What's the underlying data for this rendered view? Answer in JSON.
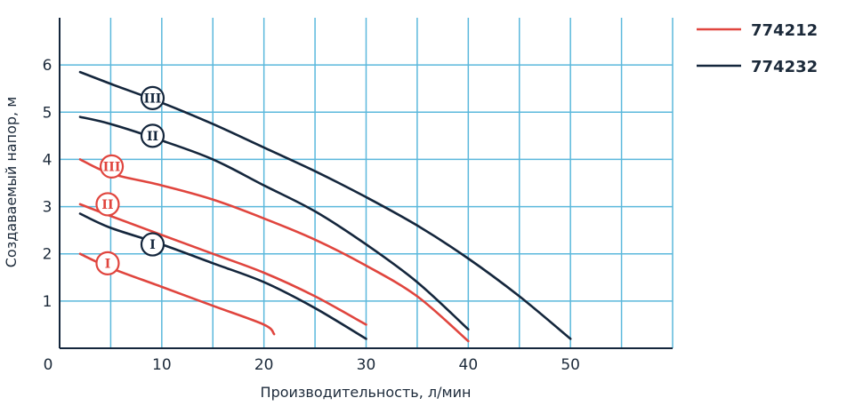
{
  "chart_data": {
    "type": "line",
    "xlabel": "Производительность, л/мин",
    "ylabel": "Создаваемый напор, м",
    "xlim": [
      0,
      60
    ],
    "ylim": [
      0,
      7
    ],
    "x_ticks": [
      "0",
      "10",
      "20",
      "30",
      "40",
      "50"
    ],
    "y_ticks": [
      "1",
      "2",
      "3",
      "4",
      "5",
      "6"
    ],
    "grid": true,
    "legend_position": "top-right",
    "colors": {
      "774212": "#e0453e",
      "774232": "#14263c",
      "grid": "#5bb8dc"
    },
    "legend": [
      {
        "name": "774212",
        "color": "#e0453e"
      },
      {
        "name": "774232",
        "color": "#14263c"
      }
    ],
    "series": [
      {
        "name": "774212",
        "mode": "I",
        "color": "#e0453e",
        "points": [
          [
            2,
            2
          ],
          [
            5,
            1.7
          ],
          [
            10,
            1.3
          ],
          [
            15,
            0.9
          ],
          [
            20,
            0.5
          ],
          [
            21,
            0.3
          ]
        ],
        "label": {
          "x": 4.7,
          "y": 1.8
        }
      },
      {
        "name": "774212",
        "mode": "II",
        "color": "#e0453e",
        "points": [
          [
            2,
            3.05
          ],
          [
            5,
            2.8
          ],
          [
            10,
            2.4
          ],
          [
            15,
            2.0
          ],
          [
            20,
            1.6
          ],
          [
            25,
            1.1
          ],
          [
            30,
            0.5
          ]
        ],
        "label": {
          "x": 4.7,
          "y": 3.05
        }
      },
      {
        "name": "774212",
        "mode": "III",
        "color": "#e0453e",
        "points": [
          [
            2,
            4.0
          ],
          [
            5,
            3.7
          ],
          [
            10,
            3.45
          ],
          [
            15,
            3.15
          ],
          [
            20,
            2.75
          ],
          [
            25,
            2.3
          ],
          [
            30,
            1.75
          ],
          [
            35,
            1.1
          ],
          [
            40,
            0.15
          ]
        ],
        "label": {
          "x": 5.1,
          "y": 3.85
        }
      },
      {
        "name": "774232",
        "mode": "I",
        "color": "#14263c",
        "points": [
          [
            2,
            2.85
          ],
          [
            5,
            2.55
          ],
          [
            10,
            2.2
          ],
          [
            15,
            1.8
          ],
          [
            20,
            1.4
          ],
          [
            25,
            0.85
          ],
          [
            30,
            0.2
          ]
        ],
        "label": {
          "x": 9.1,
          "y": 2.2
        }
      },
      {
        "name": "774232",
        "mode": "II",
        "color": "#14263c",
        "points": [
          [
            2,
            4.9
          ],
          [
            5,
            4.75
          ],
          [
            10,
            4.4
          ],
          [
            15,
            4.0
          ],
          [
            20,
            3.45
          ],
          [
            25,
            2.9
          ],
          [
            30,
            2.2
          ],
          [
            35,
            1.4
          ],
          [
            40,
            0.4
          ]
        ],
        "label": {
          "x": 9.1,
          "y": 4.5
        }
      },
      {
        "name": "774232",
        "mode": "III",
        "color": "#14263c",
        "points": [
          [
            2,
            5.85
          ],
          [
            5,
            5.6
          ],
          [
            10,
            5.2
          ],
          [
            15,
            4.75
          ],
          [
            20,
            4.25
          ],
          [
            25,
            3.75
          ],
          [
            30,
            3.2
          ],
          [
            35,
            2.6
          ],
          [
            40,
            1.9
          ],
          [
            45,
            1.1
          ],
          [
            50,
            0.2
          ]
        ],
        "label": {
          "x": 9.1,
          "y": 5.3
        }
      }
    ]
  }
}
